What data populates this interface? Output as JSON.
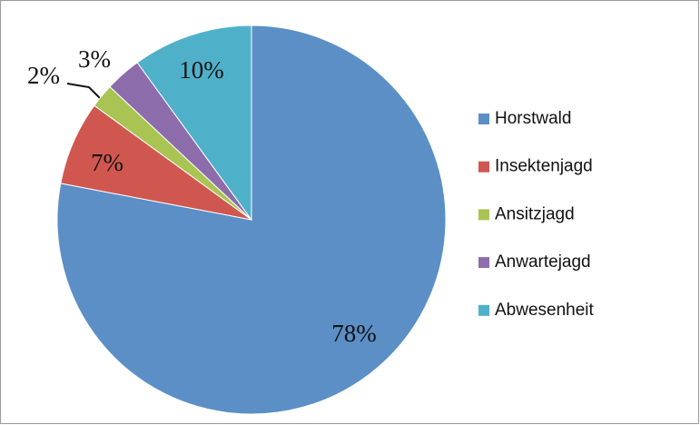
{
  "chart_data": {
    "type": "pie",
    "categories": [
      "Horstwald",
      "Insektenjagd",
      "Ansitzjagd",
      "Anwartejagd",
      "Abwesenheit"
    ],
    "values": [
      78,
      7,
      2,
      3,
      10
    ],
    "value_labels": [
      "78%",
      "7%",
      "2%",
      "3%",
      "10%"
    ],
    "colors": [
      "#5b8fc6",
      "#d0574f",
      "#a9c452",
      "#8d6cab",
      "#4fb1c9"
    ],
    "legend": "right"
  }
}
